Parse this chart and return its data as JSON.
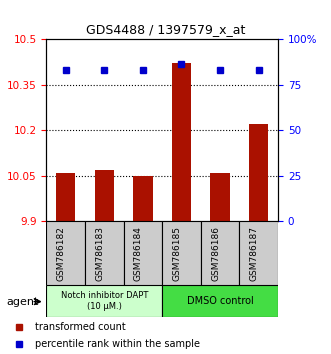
{
  "title": "GDS4488 / 1397579_x_at",
  "samples": [
    "GSM786182",
    "GSM786183",
    "GSM786184",
    "GSM786185",
    "GSM786186",
    "GSM786187"
  ],
  "bar_values": [
    10.06,
    10.07,
    10.05,
    10.42,
    10.06,
    10.22
  ],
  "percentile_values": [
    83,
    83,
    83,
    86,
    83,
    83
  ],
  "ylim_left": [
    9.9,
    10.5
  ],
  "ylim_right": [
    0,
    100
  ],
  "yticks_left": [
    9.9,
    10.05,
    10.2,
    10.35,
    10.5
  ],
  "ytick_labels_left": [
    "9.9",
    "10.05",
    "10.2",
    "10.35",
    "10.5"
  ],
  "yticks_right": [
    0,
    25,
    50,
    75,
    100
  ],
  "ytick_labels_right": [
    "0",
    "25",
    "50",
    "75",
    "100%"
  ],
  "hlines": [
    10.05,
    10.2,
    10.35
  ],
  "bar_color": "#aa1100",
  "dot_color": "#0000cc",
  "group1_label": "Notch inhibitor DAPT\n(10 μM.)",
  "group2_label": "DMSO control",
  "group1_color": "#ccffcc",
  "group2_color": "#44dd44",
  "agent_label": "agent",
  "legend_bar_label": "transformed count",
  "legend_dot_label": "percentile rank within the sample"
}
